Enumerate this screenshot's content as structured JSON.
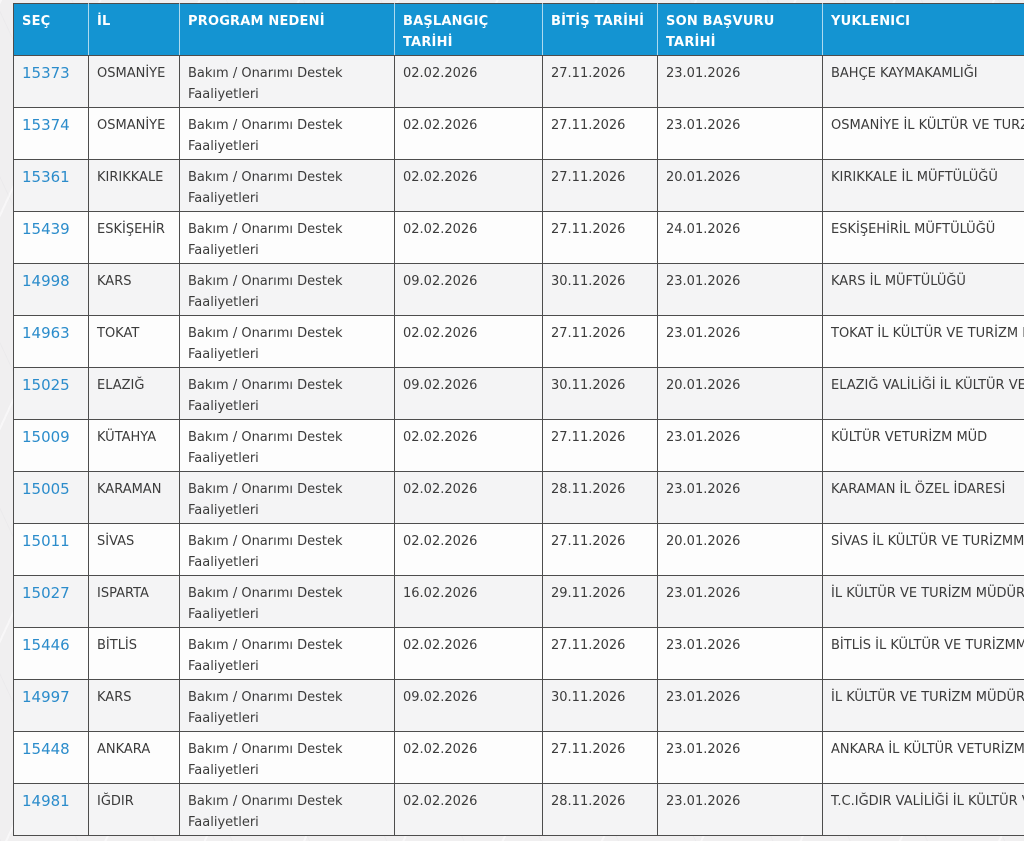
{
  "colors": {
    "header_bg": "#1494d2",
    "header_text": "#ffffff",
    "link": "#2b8ccb",
    "border": "#4d4d4d",
    "row_odd_bg": "#f4f4f5",
    "row_even_bg": "#fdfdfd",
    "page_bg": "#f0eff0",
    "text": "#3b3b3b"
  },
  "table": {
    "columns": [
      {
        "key": "sec",
        "label": "SEÇ"
      },
      {
        "key": "il",
        "label": "İL"
      },
      {
        "key": "program",
        "label": "PROGRAM NEDENİ"
      },
      {
        "key": "baslangic",
        "label": "BAŞLANGIÇ TARİHİ"
      },
      {
        "key": "bitis",
        "label": "BİTİŞ TARİHİ"
      },
      {
        "key": "son_basvuru",
        "label": "SON BAŞVURU TARİHİ"
      },
      {
        "key": "yuklenici",
        "label": "YUKLENICI"
      }
    ],
    "rows": [
      {
        "sec": "15373",
        "il": "OSMANİYE",
        "program": "Bakım / Onarımı Destek Faaliyetleri",
        "baslangic": "02.02.2026",
        "bitis": "27.11.2026",
        "son_basvuru": "23.01.2026",
        "yuklenici": "BAHÇE KAYMAKAMLIĞI"
      },
      {
        "sec": "15374",
        "il": "OSMANİYE",
        "program": "Bakım / Onarımı Destek Faaliyetleri",
        "baslangic": "02.02.2026",
        "bitis": "27.11.2026",
        "son_basvuru": "23.01.2026",
        "yuklenici": "OSMANİYE İL KÜLTÜR VE TURZİM MÜDÜRLÜĞÜ"
      },
      {
        "sec": "15361",
        "il": "KIRIKKALE",
        "program": "Bakım / Onarımı Destek Faaliyetleri",
        "baslangic": "02.02.2026",
        "bitis": "27.11.2026",
        "son_basvuru": "20.01.2026",
        "yuklenici": "KIRIKKALE İL MÜFTÜLÜĞÜ"
      },
      {
        "sec": "15439",
        "il": "ESKİŞEHİR",
        "program": "Bakım / Onarımı Destek Faaliyetleri",
        "baslangic": "02.02.2026",
        "bitis": "27.11.2026",
        "son_basvuru": "24.01.2026",
        "yuklenici": "ESKİŞEHİRİL MÜFTÜLÜĞÜ"
      },
      {
        "sec": "14998",
        "il": "KARS",
        "program": "Bakım / Onarımı Destek Faaliyetleri",
        "baslangic": "09.02.2026",
        "bitis": "30.11.2026",
        "son_basvuru": "23.01.2026",
        "yuklenici": "KARS İL MÜFTÜLÜĞÜ"
      },
      {
        "sec": "14963",
        "il": "TOKAT",
        "program": "Bakım / Onarımı Destek Faaliyetleri",
        "baslangic": "02.02.2026",
        "bitis": "27.11.2026",
        "son_basvuru": "23.01.2026",
        "yuklenici": "TOKAT İL KÜLTÜR VE TURİZM MÜDÜRLÜĞÜ"
      },
      {
        "sec": "15025",
        "il": "ELAZIĞ",
        "program": "Bakım / Onarımı Destek Faaliyetleri",
        "baslangic": "09.02.2026",
        "bitis": "30.11.2026",
        "son_basvuru": "20.01.2026",
        "yuklenici": "ELAZIĞ VALİLİĞİ İL KÜLTÜR VE TURİZM MÜDÜRLÜĞÜ"
      },
      {
        "sec": "15009",
        "il": "KÜTAHYA",
        "program": "Bakım / Onarımı Destek Faaliyetleri",
        "baslangic": "02.02.2026",
        "bitis": "27.11.2026",
        "son_basvuru": "23.01.2026",
        "yuklenici": "KÜLTÜR VETURİZM MÜD"
      },
      {
        "sec": "15005",
        "il": "KARAMAN",
        "program": "Bakım / Onarımı Destek Faaliyetleri",
        "baslangic": "02.02.2026",
        "bitis": "28.11.2026",
        "son_basvuru": "23.01.2026",
        "yuklenici": "KARAMAN İL ÖZEL İDARESİ"
      },
      {
        "sec": "15011",
        "il": "SİVAS",
        "program": "Bakım / Onarımı Destek Faaliyetleri",
        "baslangic": "02.02.2026",
        "bitis": "27.11.2026",
        "son_basvuru": "20.01.2026",
        "yuklenici": "SİVAS İL KÜLTÜR VE TURİZMMÜDÜRLÜĞÜ"
      },
      {
        "sec": "15027",
        "il": "ISPARTA",
        "program": "Bakım / Onarımı Destek Faaliyetleri",
        "baslangic": "16.02.2026",
        "bitis": "29.11.2026",
        "son_basvuru": "23.01.2026",
        "yuklenici": "İL KÜLTÜR VE TURİZM MÜDÜRLÜĞÜ"
      },
      {
        "sec": "15446",
        "il": "BİTLİS",
        "program": "Bakım / Onarımı Destek Faaliyetleri",
        "baslangic": "02.02.2026",
        "bitis": "27.11.2026",
        "son_basvuru": "23.01.2026",
        "yuklenici": "BİTLİS İL KÜLTÜR VE TURİZMMÜDÜRLÜĞÜ"
      },
      {
        "sec": "14997",
        "il": "KARS",
        "program": "Bakım / Onarımı Destek Faaliyetleri",
        "baslangic": "09.02.2026",
        "bitis": "30.11.2026",
        "son_basvuru": "23.01.2026",
        "yuklenici": "İL KÜLTÜR VE TURİZM MÜDÜRLÜĞÜ KARS"
      },
      {
        "sec": "15448",
        "il": "ANKARA",
        "program": "Bakım / Onarımı Destek Faaliyetleri",
        "baslangic": "02.02.2026",
        "bitis": "27.11.2026",
        "son_basvuru": "23.01.2026",
        "yuklenici": "ANKARA İL KÜLTÜR VETURİZM MÜDÜRLÜĞÜ"
      },
      {
        "sec": "14981",
        "il": "IĞDIR",
        "program": "Bakım / Onarımı Destek Faaliyetleri",
        "baslangic": "02.02.2026",
        "bitis": "28.11.2026",
        "son_basvuru": "23.01.2026",
        "yuklenici": "T.C.IĞDIR VALİLİĞİ İL KÜLTÜR VE TURİZM MÜDÜRLÜĞÜ"
      }
    ]
  }
}
